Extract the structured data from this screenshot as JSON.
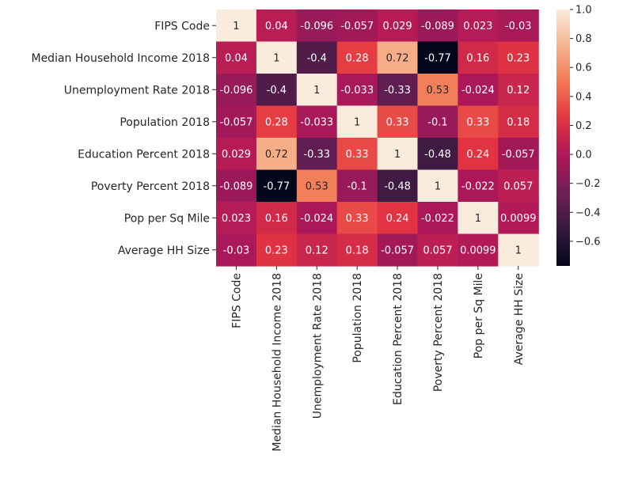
{
  "chart_data": {
    "type": "heatmap",
    "title": "",
    "xlabel": "",
    "ylabel": "",
    "labels": [
      "FIPS Code",
      "Median Household Income 2018",
      "Unemployment Rate 2018",
      "Population 2018",
      "Education Percent 2018",
      "Poverty Percent 2018",
      "Pop per Sq Mile",
      "Average HH Size"
    ],
    "matrix": [
      [
        1,
        0.04,
        -0.096,
        -0.057,
        0.029,
        -0.089,
        0.023,
        -0.03
      ],
      [
        0.04,
        1,
        -0.4,
        0.28,
        0.72,
        -0.77,
        0.16,
        0.23
      ],
      [
        -0.096,
        -0.4,
        1,
        -0.033,
        -0.33,
        0.53,
        -0.024,
        0.12
      ],
      [
        -0.057,
        0.28,
        -0.033,
        1,
        0.33,
        -0.1,
        0.33,
        0.18
      ],
      [
        0.029,
        0.72,
        -0.33,
        0.33,
        1,
        -0.48,
        0.24,
        -0.057
      ],
      [
        -0.089,
        -0.77,
        0.53,
        -0.1,
        -0.48,
        1,
        -0.022,
        0.057
      ],
      [
        0.023,
        0.16,
        -0.024,
        0.33,
        0.24,
        -0.022,
        1,
        0.0099
      ],
      [
        -0.03,
        0.23,
        0.12,
        0.18,
        -0.057,
        0.057,
        0.0099,
        1
      ]
    ],
    "annotations": [
      [
        "1",
        "0.04",
        "-0.096",
        "-0.057",
        "0.029",
        "-0.089",
        "0.023",
        "-0.03"
      ],
      [
        "0.04",
        "1",
        "-0.4",
        "0.28",
        "0.72",
        "-0.77",
        "0.16",
        "0.23"
      ],
      [
        "-0.096",
        "-0.4",
        "1",
        "-0.033",
        "-0.33",
        "0.53",
        "-0.024",
        "0.12"
      ],
      [
        "-0.057",
        "0.28",
        "-0.033",
        "1",
        "0.33",
        "-0.1",
        "0.33",
        "0.18"
      ],
      [
        "0.029",
        "0.72",
        "-0.33",
        "0.33",
        "1",
        "-0.48",
        "0.24",
        "-0.057"
      ],
      [
        "-0.089",
        "-0.77",
        "0.53",
        "-0.1",
        "-0.48",
        "1",
        "-0.022",
        "0.057"
      ],
      [
        "0.023",
        "0.16",
        "-0.024",
        "0.33",
        "0.24",
        "-0.022",
        "1",
        "0.0099"
      ],
      [
        "-0.03",
        "0.23",
        "0.12",
        "0.18",
        "-0.057",
        "0.057",
        "0.0099",
        "1"
      ]
    ],
    "colorbar": {
      "vmin": -0.77,
      "vmax": 1,
      "ticks": [
        -0.6,
        -0.4,
        -0.2,
        0.0,
        0.2,
        0.4,
        0.6,
        0.8,
        1.0
      ],
      "tick_labels": [
        "−0.6",
        "−0.4",
        "−0.2",
        "0.0",
        "0.2",
        "0.4",
        "0.6",
        "0.8",
        "1.0"
      ],
      "colormap": "rocket",
      "colormap_stops": [
        "#03051a",
        "#36193e",
        "#701f57",
        "#ae1759",
        "#e13342",
        "#f37651",
        "#f6b48f",
        "#faebdd"
      ]
    }
  }
}
